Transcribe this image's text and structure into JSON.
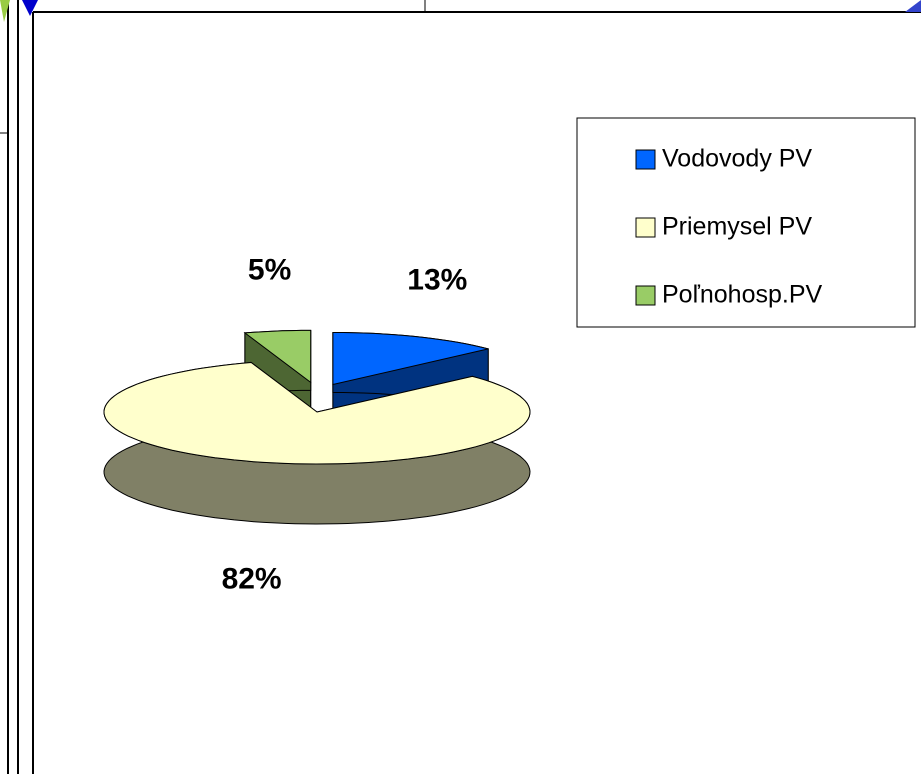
{
  "chart_data": {
    "type": "pie",
    "style": "3d",
    "categories": [
      "Vodovody PV",
      "Priemysel PV",
      "Poľnohosp.PV"
    ],
    "values": [
      13,
      82,
      5
    ],
    "value_labels": [
      "13%",
      "82%",
      "5%"
    ],
    "colors": [
      "#0066ff",
      "#ffffcc",
      "#99cc66"
    ],
    "legend": "right"
  }
}
